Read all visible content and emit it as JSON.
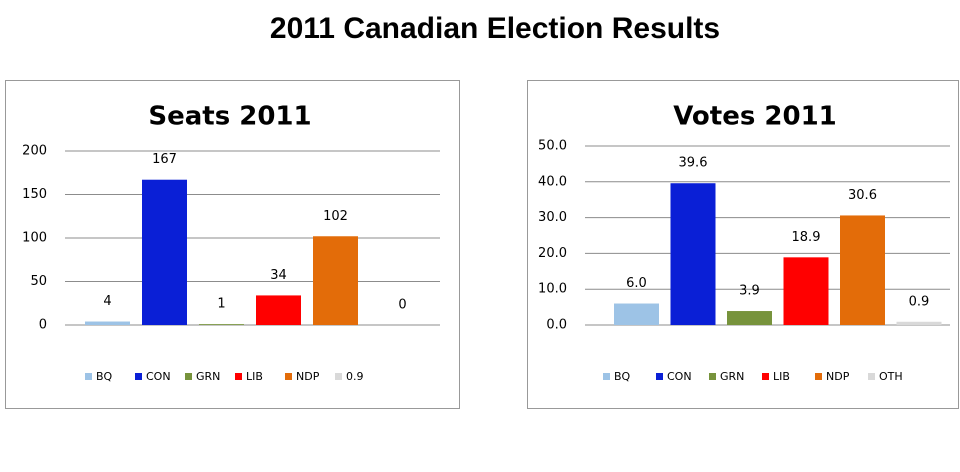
{
  "page_title": "2011 Canadian Election Results",
  "chart_data": [
    {
      "type": "bar",
      "title": "Seats 2011",
      "ylim": [
        0,
        200
      ],
      "yticks": [
        0,
        50,
        100,
        150,
        200
      ],
      "grid": true,
      "legend": "bottom",
      "series": [
        {
          "name": "BQ",
          "color": "#9dc3e6",
          "values": [
            4
          ]
        },
        {
          "name": "CON",
          "color": "#0a1fd6",
          "values": [
            167
          ]
        },
        {
          "name": "GRN",
          "color": "#77933c",
          "values": [
            1
          ]
        },
        {
          "name": "LIB",
          "color": "#ff0000",
          "values": [
            34
          ]
        },
        {
          "name": "NDP",
          "color": "#e36c09",
          "values": [
            102
          ]
        },
        {
          "name": "0.9",
          "color": "#d9d9d9",
          "values": [
            0
          ]
        }
      ]
    },
    {
      "type": "bar",
      "title": "Votes 2011",
      "ylim": [
        0,
        50
      ],
      "yticks": [
        {
          "value": 0,
          "label": "0.0"
        },
        {
          "value": 10,
          "label": "10.0"
        },
        {
          "value": 20,
          "label": "20.0"
        },
        {
          "value": 30,
          "label": "30.0"
        },
        {
          "value": 40,
          "label": "40.0"
        },
        {
          "value": 50,
          "label": "50.0"
        }
      ],
      "grid": true,
      "legend": "bottom",
      "series": [
        {
          "name": "BQ",
          "color": "#9dc3e6",
          "values": [
            6
          ],
          "value_labels": [
            "6.0"
          ]
        },
        {
          "name": "CON",
          "color": "#0a1fd6",
          "values": [
            39.6
          ]
        },
        {
          "name": "GRN",
          "color": "#77933c",
          "values": [
            3.9
          ]
        },
        {
          "name": "LIB",
          "color": "#ff0000",
          "values": [
            18.9
          ]
        },
        {
          "name": "NDP",
          "color": "#e36c09",
          "values": [
            30.6
          ]
        },
        {
          "name": "OTH",
          "color": "#d9d9d9",
          "values": [
            0.9
          ]
        }
      ]
    }
  ]
}
